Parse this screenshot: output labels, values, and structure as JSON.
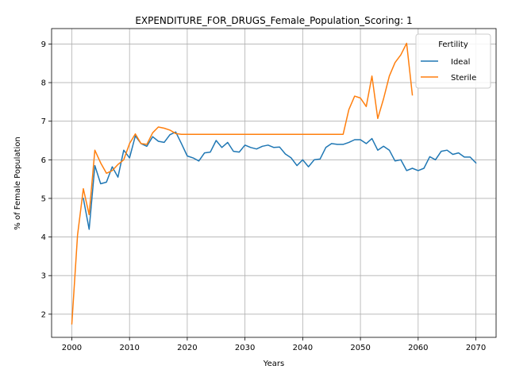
{
  "chart_data": {
    "type": "line",
    "title": "EXPENDITURE_FOR_DRUGS_Female_Population_Scoring: 1",
    "xlabel": "Years",
    "ylabel": "% of Female Population",
    "xlim": [
      1996.5,
      2073.5
    ],
    "ylim": [
      1.4,
      9.4
    ],
    "xticks": [
      2000,
      2010,
      2020,
      2030,
      2040,
      2050,
      2060,
      2070
    ],
    "yticks": [
      2,
      3,
      4,
      5,
      6,
      7,
      8,
      9
    ],
    "grid": true,
    "legend": {
      "title": "Fertility",
      "placement": "top-right"
    },
    "series": [
      {
        "name": "Ideal",
        "color": "#1f77b4",
        "x": [
          2002,
          2003,
          2004,
          2005,
          2006,
          2007,
          2008,
          2009,
          2010,
          2011,
          2012,
          2013,
          2014,
          2015,
          2016,
          2017,
          2018,
          2019,
          2020,
          2021,
          2022,
          2023,
          2024,
          2025,
          2026,
          2027,
          2028,
          2029,
          2030,
          2031,
          2032,
          2033,
          2034,
          2035,
          2036,
          2037,
          2038,
          2039,
          2040,
          2041,
          2042,
          2043,
          2044,
          2045,
          2046,
          2047,
          2048,
          2049,
          2050,
          2051,
          2052,
          2053,
          2054,
          2055,
          2056,
          2057,
          2058,
          2059,
          2060,
          2061,
          2062,
          2063,
          2064,
          2065,
          2066,
          2067,
          2068,
          2069,
          2070
        ],
        "y": [
          5.0,
          4.2,
          5.85,
          5.38,
          5.42,
          5.82,
          5.55,
          6.25,
          6.05,
          6.62,
          6.42,
          6.35,
          6.6,
          6.48,
          6.45,
          6.65,
          6.72,
          6.42,
          6.1,
          6.05,
          5.97,
          6.18,
          6.2,
          6.5,
          6.32,
          6.45,
          6.22,
          6.2,
          6.38,
          6.32,
          6.28,
          6.35,
          6.38,
          6.32,
          6.33,
          6.15,
          6.05,
          5.85,
          6.0,
          5.82,
          6.0,
          6.02,
          6.32,
          6.42,
          6.4,
          6.4,
          6.45,
          6.52,
          6.52,
          6.42,
          6.55,
          6.25,
          6.35,
          6.25,
          5.97,
          6.0,
          5.72,
          5.78,
          5.72,
          5.78,
          6.08,
          6.0,
          6.22,
          6.25,
          6.14,
          6.18,
          6.07,
          6.07,
          5.92
        ]
      },
      {
        "name": "Sterile",
        "color": "#ff7f0e",
        "x": [
          2000,
          2001,
          2002,
          2003,
          2004,
          2005,
          2006,
          2007,
          2008,
          2009,
          2010,
          2011,
          2012,
          2013,
          2014,
          2015,
          2016,
          2017,
          2018,
          2019,
          2020,
          2021,
          2022,
          2023,
          2024,
          2025,
          2026,
          2027,
          2028,
          2029,
          2030,
          2031,
          2032,
          2033,
          2034,
          2035,
          2036,
          2037,
          2038,
          2039,
          2040,
          2041,
          2042,
          2043,
          2044,
          2045,
          2046,
          2047,
          2048,
          2049,
          2050,
          2051,
          2052,
          2053,
          2054,
          2055,
          2056,
          2057,
          2058,
          2059
        ],
        "y": [
          1.75,
          4.05,
          5.25,
          4.58,
          6.25,
          5.92,
          5.65,
          5.72,
          5.88,
          6.0,
          6.42,
          6.67,
          6.42,
          6.4,
          6.7,
          6.85,
          6.82,
          6.77,
          6.68,
          6.66,
          6.66,
          6.66,
          6.66,
          6.66,
          6.66,
          6.66,
          6.66,
          6.66,
          6.66,
          6.66,
          6.66,
          6.66,
          6.66,
          6.66,
          6.66,
          6.66,
          6.66,
          6.66,
          6.66,
          6.66,
          6.66,
          6.66,
          6.66,
          6.66,
          6.66,
          6.66,
          6.66,
          6.66,
          7.3,
          7.65,
          7.6,
          7.38,
          8.17,
          7.07,
          7.58,
          8.17,
          8.52,
          8.72,
          9.02,
          7.68
        ]
      }
    ]
  }
}
